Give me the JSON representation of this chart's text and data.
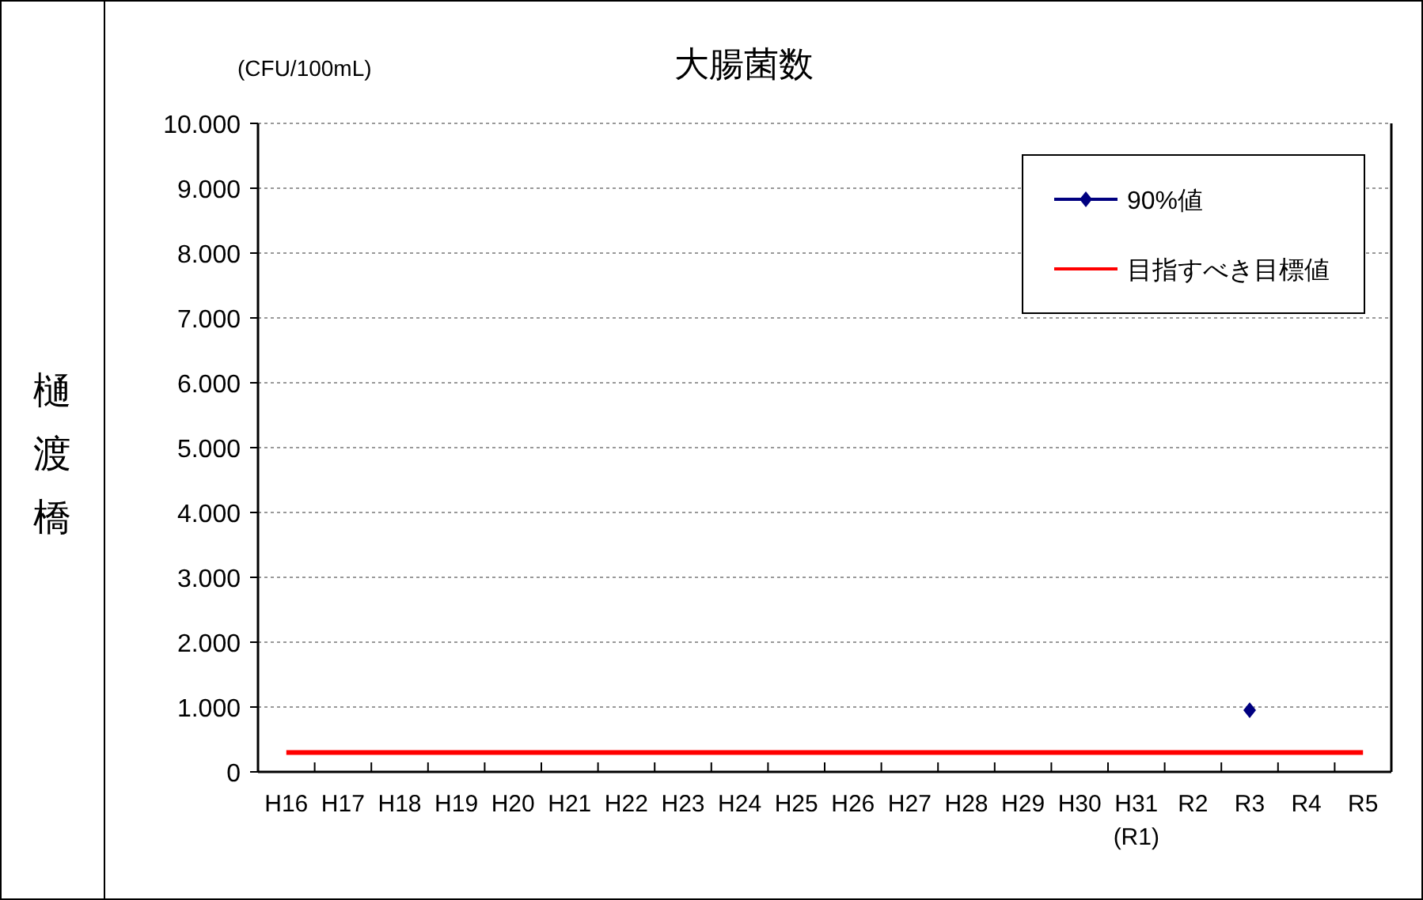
{
  "chart_data": {
    "type": "line",
    "title": "大腸菌数",
    "ylabel": "(CFU/100mL)",
    "annotations": [
      "樋渡橋"
    ],
    "categories": [
      "H16",
      "H17",
      "H18",
      "H19",
      "H20",
      "H21",
      "H22",
      "H23",
      "H24",
      "H25",
      "H26",
      "H27",
      "H28",
      "H29",
      "H30",
      "H31\n(R1)",
      "R2",
      "R3",
      "R4",
      "R5"
    ],
    "series": [
      {
        "name": "90%値",
        "color": "#000080",
        "marker": "diamond",
        "values": [
          null,
          null,
          null,
          null,
          null,
          null,
          null,
          null,
          null,
          null,
          null,
          null,
          null,
          null,
          null,
          null,
          null,
          950,
          null,
          null
        ]
      },
      {
        "name": "目指すべき目標値",
        "color": "#ff0000",
        "marker": "none",
        "values": [
          300,
          300,
          300,
          300,
          300,
          300,
          300,
          300,
          300,
          300,
          300,
          300,
          300,
          300,
          300,
          300,
          300,
          300,
          300,
          300
        ]
      }
    ],
    "ylim": [
      0,
      10000
    ],
    "yticks": [
      0,
      {
        "value": 1000,
        "label": "1.000"
      },
      {
        "value": 2000,
        "label": "2.000"
      },
      {
        "value": 3000,
        "label": "3.000"
      },
      {
        "value": 4000,
        "label": "4.000"
      },
      {
        "value": 5000,
        "label": "5.000"
      },
      {
        "value": 6000,
        "label": "6.000"
      },
      {
        "value": 7000,
        "label": "7.000"
      },
      {
        "value": 8000,
        "label": "8.000"
      },
      {
        "value": 9000,
        "label": "9.000"
      },
      {
        "value": 10000,
        "label": "10.000"
      }
    ],
    "grid": "y",
    "legend": "top right"
  }
}
